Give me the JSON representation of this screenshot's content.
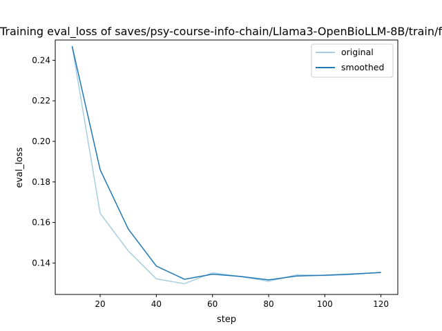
{
  "chart_data": {
    "type": "line",
    "title": "Training eval_loss of saves/psy-course-info-chain/Llama3-OpenBioLLM-8B/train/f",
    "xlabel": "step",
    "ylabel": "eval_loss",
    "xlim": [
      4,
      126
    ],
    "ylim": [
      0.1245,
      0.25
    ],
    "xticks": [
      20,
      40,
      60,
      80,
      100,
      120
    ],
    "yticks": [
      0.14,
      0.16,
      0.18,
      0.2,
      0.22,
      0.24
    ],
    "ytick_labels": [
      "0.14",
      "0.16",
      "0.18",
      "0.20",
      "0.22",
      "0.24"
    ],
    "grid": false,
    "legend_position": "upper right",
    "x": [
      10,
      20,
      30,
      40,
      50,
      60,
      70,
      80,
      90,
      100,
      110,
      120
    ],
    "series": [
      {
        "name": "original",
        "color": "#a6cde2",
        "values": [
          0.247,
          0.1645,
          0.146,
          0.1322,
          0.1298,
          0.1352,
          0.1333,
          0.131,
          0.1342,
          0.1338,
          0.1343,
          0.1355
        ]
      },
      {
        "name": "smoothed",
        "color": "#1f77b4",
        "values": [
          0.247,
          0.186,
          0.1568,
          0.1385,
          0.132,
          0.1345,
          0.1334,
          0.1317,
          0.1336,
          0.134,
          0.1346,
          0.1353
        ]
      }
    ]
  }
}
